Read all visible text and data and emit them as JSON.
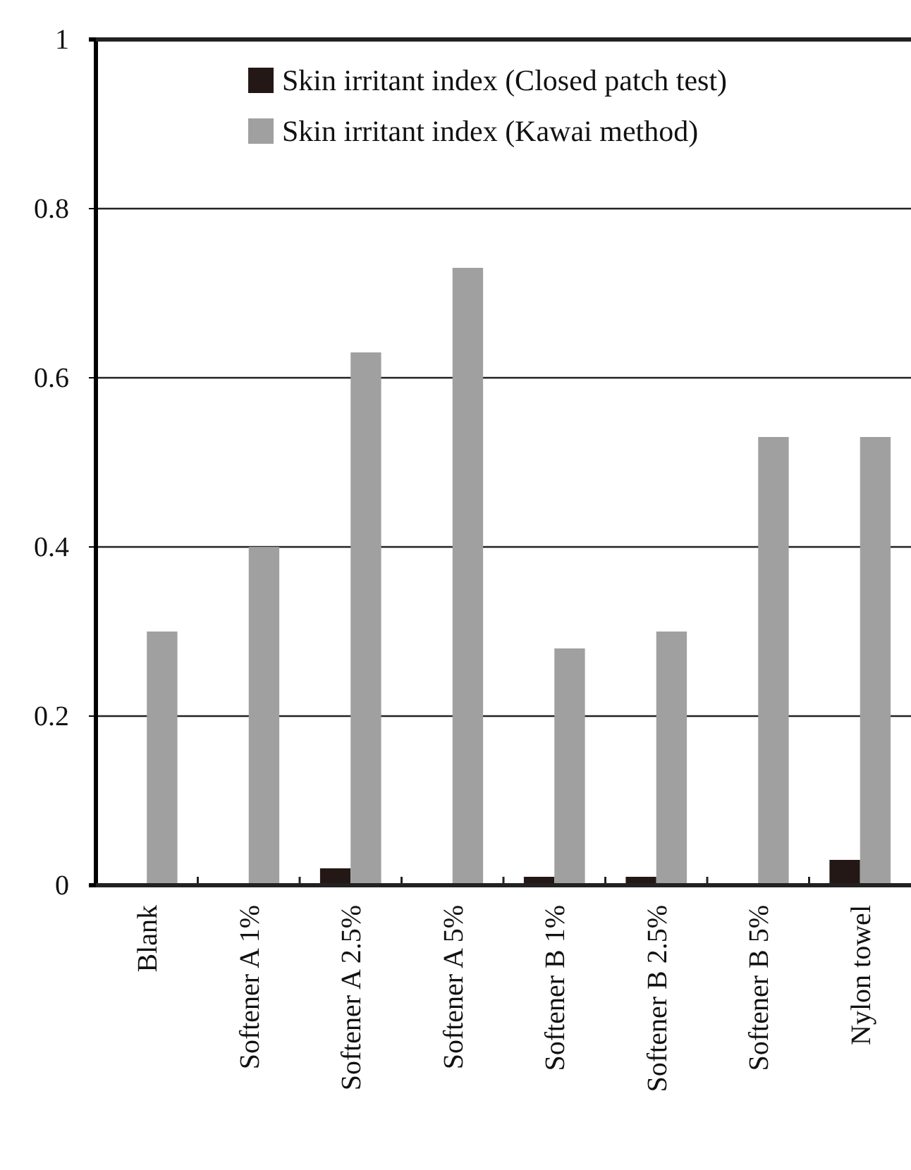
{
  "chart_data": {
    "type": "bar",
    "categories": [
      "Blank",
      "Softener A 1%",
      "Softener A 2.5%",
      "Softener A 5%",
      "Softener B 1%",
      "Softener B 2.5%",
      "Softener B 5%",
      "Nylon towel"
    ],
    "series": [
      {
        "name": "Skin irritant index (Closed patch test)",
        "color": "#231816",
        "values": [
          0,
          0,
          0.02,
          0,
          0.01,
          0.01,
          0,
          0.03
        ]
      },
      {
        "name": "Skin irritant index (Kawai method)",
        "color": "#a0a0a0",
        "values": [
          0.3,
          0.4,
          0.63,
          0.73,
          0.28,
          0.3,
          0.53,
          0.53
        ]
      }
    ],
    "ylim": [
      0,
      1
    ],
    "yticks": [
      0,
      {
        "value": 0.2,
        "label": "0.2"
      },
      {
        "value": 0.4,
        "label": "0.4"
      },
      {
        "value": 0.6,
        "label": "0.6"
      },
      {
        "value": 0.8,
        "label": "0.8"
      },
      1
    ],
    "grid": "y",
    "legend": "top right"
  }
}
